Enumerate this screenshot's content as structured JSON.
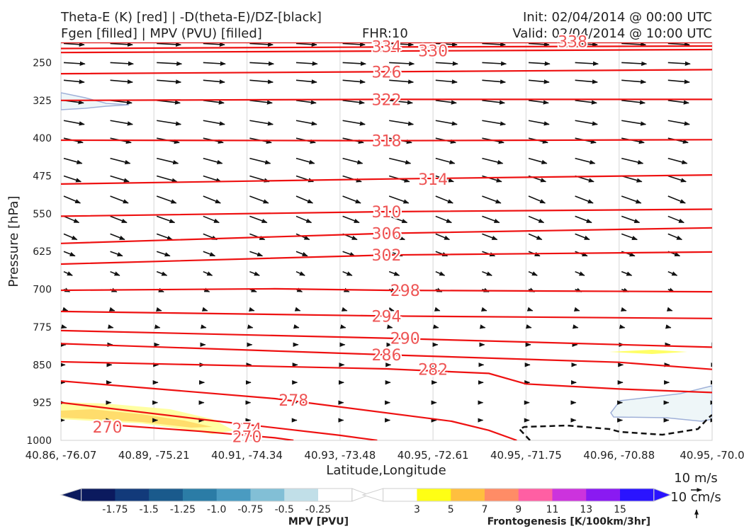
{
  "header": {
    "title_line1": "Theta-E (K) [red] | -D(theta-E)/DZ-[black]",
    "title_line2": "Fgen [filled] | MPV (PVU) [filled]",
    "fhr": "FHR:10",
    "init": "Init: 02/04/2014 @ 00:00 UTC",
    "valid": "Valid: 02/04/2014 @ 10:00 UTC"
  },
  "chart_data": {
    "type": "line",
    "ylabel": "Pressure [hPa]",
    "xlabel": "Latitude,Longitude",
    "y_ticks": [
      "250",
      "325",
      "400",
      "475",
      "550",
      "625",
      "700",
      "775",
      "850",
      "925",
      "1000"
    ],
    "x_ticks": [
      "40.86, -76.07",
      "40.89, -75.21",
      "40.91, -74.34",
      "40.93, -73.48",
      "40.95, -72.61",
      "40.95, -71.75",
      "40.96, -70.88",
      "40.95, -70.0"
    ],
    "ylim": [
      1000,
      210
    ],
    "xlim": [
      0,
      7
    ],
    "theta_e_contours": [
      {
        "level": "338",
        "pts": [
          [
            0,
            210
          ],
          [
            7,
            210
          ]
        ]
      },
      {
        "level": "334",
        "pts": [
          [
            0,
            222
          ],
          [
            3.5,
            219
          ],
          [
            7,
            217
          ]
        ]
      },
      {
        "level": "330",
        "pts": [
          [
            0,
            230
          ],
          [
            3.5,
            227
          ],
          [
            7,
            224
          ]
        ]
      },
      {
        "level": "326",
        "pts": [
          [
            0,
            272
          ],
          [
            3.5,
            268
          ],
          [
            7,
            264
          ]
        ]
      },
      {
        "level": "322",
        "pts": [
          [
            0,
            325
          ],
          [
            3.5,
            323
          ],
          [
            7,
            323
          ]
        ]
      },
      {
        "level": "318",
        "pts": [
          [
            0,
            404
          ],
          [
            3.5,
            405
          ],
          [
            7,
            403
          ]
        ]
      },
      {
        "level": "314",
        "pts": [
          [
            0,
            491
          ],
          [
            3.5,
            481
          ],
          [
            7,
            473
          ]
        ]
      },
      {
        "level": "310",
        "pts": [
          [
            0,
            555
          ],
          [
            3.5,
            546
          ],
          [
            7,
            541
          ]
        ]
      },
      {
        "level": "306",
        "pts": [
          [
            0,
            609
          ],
          [
            3.5,
            589
          ],
          [
            7,
            578
          ]
        ]
      },
      {
        "level": "302",
        "pts": [
          [
            0,
            650
          ],
          [
            3.5,
            632
          ],
          [
            7,
            626
          ]
        ]
      },
      {
        "level": "298",
        "pts": [
          [
            0,
            702
          ],
          [
            2.3,
            699
          ],
          [
            3.5,
            702
          ],
          [
            7,
            705
          ]
        ]
      },
      {
        "level": "294",
        "pts": [
          [
            0,
            744
          ],
          [
            3.5,
            753
          ],
          [
            7,
            758
          ]
        ]
      },
      {
        "level": "290",
        "pts": [
          [
            0,
            782
          ],
          [
            3.5,
            797
          ],
          [
            7,
            815
          ]
        ]
      },
      {
        "level": "286",
        "pts": [
          [
            0,
            808
          ],
          [
            3.5,
            830
          ],
          [
            6,
            845
          ],
          [
            7,
            859
          ]
        ]
      },
      {
        "level": "282",
        "pts": [
          [
            0,
            844
          ],
          [
            3.5,
            858
          ],
          [
            4.6,
            867
          ],
          [
            5,
            888
          ],
          [
            6,
            898
          ],
          [
            7,
            905
          ]
        ]
      },
      {
        "level": "278",
        "pts": [
          [
            0,
            882
          ],
          [
            2.3,
            917
          ],
          [
            4.2,
            962
          ],
          [
            4.6,
            980
          ],
          [
            4.9,
            1000
          ]
        ]
      },
      {
        "level": "274",
        "pts": [
          [
            0,
            925
          ],
          [
            1.5,
            958
          ],
          [
            3,
            990
          ],
          [
            3.4,
            1000
          ]
        ]
      },
      {
        "level": "270",
        "pts": [
          [
            0.6,
            970
          ],
          [
            1.5,
            982
          ],
          [
            2.3,
            995
          ],
          [
            2.5,
            1000
          ]
        ]
      }
    ],
    "contour_labels": [
      {
        "text": "338",
        "x": 5.5,
        "y": 208
      },
      {
        "text": "334",
        "x": 3.5,
        "y": 218
      },
      {
        "text": "330",
        "x": 4.0,
        "y": 226
      },
      {
        "text": "326",
        "x": 3.5,
        "y": 268
      },
      {
        "text": "322",
        "x": 3.5,
        "y": 323
      },
      {
        "text": "318",
        "x": 3.5,
        "y": 405
      },
      {
        "text": "314",
        "x": 4.0,
        "y": 481
      },
      {
        "text": "310",
        "x": 3.5,
        "y": 546
      },
      {
        "text": "306",
        "x": 3.5,
        "y": 589
      },
      {
        "text": "302",
        "x": 3.5,
        "y": 632
      },
      {
        "text": "298",
        "x": 3.7,
        "y": 702
      },
      {
        "text": "294",
        "x": 3.5,
        "y": 753
      },
      {
        "text": "290",
        "x": 3.7,
        "y": 797
      },
      {
        "text": "286",
        "x": 3.5,
        "y": 830
      },
      {
        "text": "282",
        "x": 4.0,
        "y": 859
      },
      {
        "text": "278",
        "x": 2.5,
        "y": 920
      },
      {
        "text": "274",
        "x": 2.0,
        "y": 977
      },
      {
        "text": "270",
        "x": 0.5,
        "y": 973
      },
      {
        "text": "270",
        "x": 2.0,
        "y": 992
      }
    ],
    "mpv_colorbar": {
      "title": "MPV [PVU]",
      "labels": [
        "-1.75",
        "-1.5",
        "-1.25",
        "-1.0",
        "-0.75",
        "-0.5",
        "-0.25"
      ],
      "colors": [
        "#0b1a5e",
        "#123a7a",
        "#1a5a8c",
        "#2b7ca6",
        "#4a9bc1",
        "#82bfd6",
        "#c1dfe8",
        "#ffffff"
      ]
    },
    "fgen_colorbar": {
      "title": "Frontogenesis [K/100km/3hr]",
      "labels": [
        "3",
        "5",
        "7",
        "9",
        "11",
        "13",
        "15"
      ],
      "colors": [
        "#ffffff",
        "#ffff14",
        "#ffbf3f",
        "#ff8c66",
        "#ff5fa3",
        "#cc33dd",
        "#8a1af2",
        "#2a14ff"
      ]
    },
    "wind_key": {
      "horizontal": "10 m/s",
      "vertical": "10 cm/s"
    }
  }
}
